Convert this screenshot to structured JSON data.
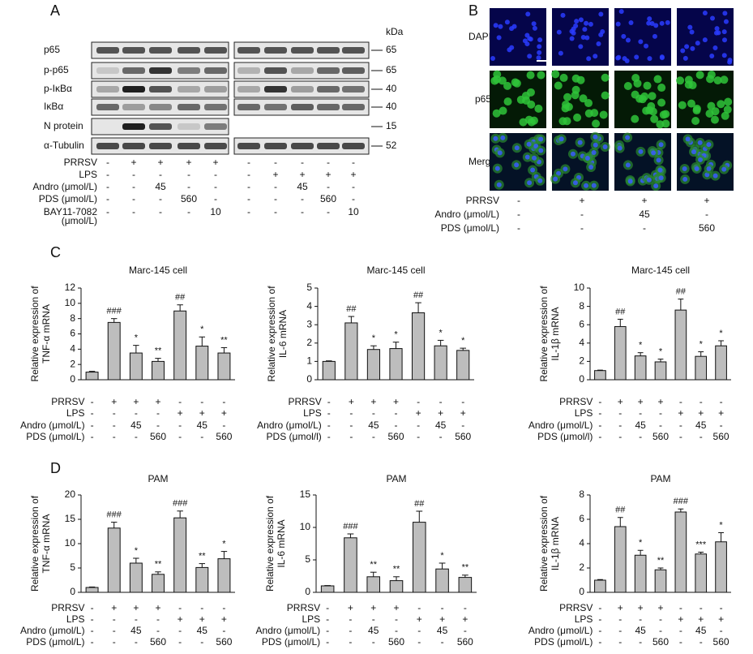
{
  "panel_a": {
    "label": "A",
    "kda": "kDa",
    "blots": [
      {
        "name": "p65",
        "size": "65"
      },
      {
        "name": "p-p65",
        "size": "65"
      },
      {
        "name": "p-IκBα",
        "size": "40"
      },
      {
        "name": "IκBα",
        "size": "40"
      },
      {
        "name": "N protein",
        "size": "15"
      },
      {
        "name": "α-Tubulin",
        "size": "52"
      }
    ],
    "treatments": [
      {
        "label": "PRRSV",
        "cells": [
          "-",
          "+",
          "+",
          "+",
          "+",
          "-",
          "-",
          "-",
          "-",
          "-"
        ]
      },
      {
        "label": "LPS",
        "cells": [
          "-",
          "-",
          "-",
          "-",
          "-",
          "-",
          "+",
          "+",
          "+",
          "+"
        ]
      },
      {
        "label": "Andro (μmol/L)",
        "cells": [
          "-",
          "-",
          "45",
          "-",
          "-",
          "-",
          "-",
          "45",
          "-",
          "-"
        ]
      },
      {
        "label": "PDS (μmol/L)",
        "cells": [
          "-",
          "-",
          "-",
          "560",
          "-",
          "-",
          "-",
          "-",
          "560",
          "-"
        ]
      },
      {
        "label": [
          "BAY11-7082",
          "(μmol/L)"
        ],
        "cells": [
          "-",
          "-",
          "-",
          "-",
          "10",
          "-",
          "-",
          "-",
          "-",
          "10"
        ]
      }
    ]
  },
  "panel_b": {
    "label": "B",
    "rows": [
      "DAPI",
      "p65",
      "Merge"
    ],
    "treatments": [
      {
        "label": "PRRSV",
        "cells": [
          "-",
          "+",
          "+",
          "+"
        ]
      },
      {
        "label": "Andro (μmol/L)",
        "cells": [
          "-",
          "-",
          "45",
          "-"
        ]
      },
      {
        "label": "PDS (μmol/L)",
        "cells": [
          "-",
          "-",
          "-",
          "560"
        ]
      }
    ]
  },
  "panel_c_label": "C",
  "panel_d_label": "D",
  "chart_data": [
    {
      "type": "bar",
      "title": "Marc-145 cell",
      "ylabel": [
        "Relative expression of",
        "TNF-α mRNA"
      ],
      "ylim": [
        0,
        12
      ],
      "yticks": [
        0,
        2,
        4,
        6,
        8,
        10,
        12
      ],
      "color": "#bdbdbd",
      "values": [
        1,
        7.5,
        3.5,
        2.4,
        9,
        4.4,
        3.5
      ],
      "errors": [
        0.1,
        0.5,
        1.0,
        0.4,
        0.8,
        1.2,
        0.7
      ],
      "annotations": [
        null,
        "###",
        "*",
        "**",
        "##",
        "*",
        "**"
      ],
      "treatments": [
        {
          "label": "PRRSV",
          "cells": [
            "-",
            "+",
            "+",
            "+",
            "-",
            "-",
            "-"
          ]
        },
        {
          "label": "LPS",
          "cells": [
            "-",
            "-",
            "-",
            "-",
            "+",
            "+",
            "+"
          ]
        },
        {
          "label": "Andro (μmol/L)",
          "cells": [
            "-",
            "-",
            "45",
            "-",
            "-",
            "45",
            "-"
          ]
        },
        {
          "label": "PDS (μmol/L)",
          "cells": [
            "-",
            "-",
            "-",
            "560",
            "-",
            "-",
            "560"
          ]
        }
      ]
    },
    {
      "type": "bar",
      "title": "Marc-145 cell",
      "ylabel": [
        "Relative expression of",
        "IL-6 mRNA"
      ],
      "ylim": [
        0,
        5
      ],
      "yticks": [
        0,
        1,
        2,
        3,
        4,
        5
      ],
      "color": "#bdbdbd",
      "values": [
        1,
        3.1,
        1.65,
        1.7,
        3.65,
        1.85,
        1.6
      ],
      "errors": [
        0.03,
        0.35,
        0.2,
        0.35,
        0.55,
        0.3,
        0.12
      ],
      "annotations": [
        null,
        "##",
        "*",
        "*",
        "##",
        "*",
        "*"
      ],
      "treatments": [
        {
          "label": "PRRSV",
          "cells": [
            "-",
            "+",
            "+",
            "+",
            "-",
            "-",
            "-"
          ]
        },
        {
          "label": "LPS",
          "cells": [
            "-",
            "-",
            "-",
            "-",
            "+",
            "+",
            "+"
          ]
        },
        {
          "label": "Andro (μmol/L)",
          "cells": [
            "-",
            "-",
            "45",
            "-",
            "-",
            "45",
            "-"
          ]
        },
        {
          "label": "PDS (μmol/l)",
          "cells": [
            "-",
            "-",
            "-",
            "560",
            "-",
            "-",
            "560"
          ]
        }
      ]
    },
    {
      "type": "bar",
      "title": "Marc-145 cell",
      "ylabel": [
        "Relative expression of",
        "IL-1β mRNA"
      ],
      "ylim": [
        0,
        10
      ],
      "yticks": [
        0,
        2,
        4,
        6,
        8,
        10
      ],
      "color": "#bdbdbd",
      "values": [
        1,
        5.8,
        2.6,
        1.95,
        7.6,
        2.55,
        3.7
      ],
      "errors": [
        0.05,
        0.8,
        0.35,
        0.3,
        1.2,
        0.5,
        0.55
      ],
      "annotations": [
        null,
        "##",
        "*",
        "*",
        "##",
        "*",
        "*"
      ],
      "treatments": [
        {
          "label": "PRRSV",
          "cells": [
            "-",
            "+",
            "+",
            "+",
            "-",
            "-",
            "-"
          ]
        },
        {
          "label": "LPS",
          "cells": [
            "-",
            "-",
            "-",
            "-",
            "+",
            "+",
            "+"
          ]
        },
        {
          "label": "Andro (μmol/L)",
          "cells": [
            "-",
            "-",
            "45",
            "-",
            "-",
            "45",
            "-"
          ]
        },
        {
          "label": "PDS (μmol/l)",
          "cells": [
            "-",
            "-",
            "-",
            "560",
            "-",
            "-",
            "560"
          ]
        }
      ]
    },
    {
      "type": "bar",
      "title": "PAM",
      "ylabel": [
        "Relative expression of",
        "TNF-α mRNA"
      ],
      "ylim": [
        0,
        20
      ],
      "yticks": [
        0,
        5,
        10,
        15,
        20
      ],
      "color": "#bdbdbd",
      "values": [
        1,
        13.2,
        6,
        3.7,
        15.3,
        5.1,
        6.9
      ],
      "errors": [
        0.1,
        1.2,
        1.0,
        0.5,
        1.4,
        0.8,
        1.5
      ],
      "annotations": [
        null,
        "###",
        "*",
        "**",
        "###",
        "**",
        "*"
      ],
      "treatments": [
        {
          "label": "PRRSV",
          "cells": [
            "-",
            "+",
            "+",
            "+",
            "-",
            "-",
            "-"
          ]
        },
        {
          "label": "LPS",
          "cells": [
            "-",
            "-",
            "-",
            "-",
            "+",
            "+",
            "+"
          ]
        },
        {
          "label": "Andro (μmol/L)",
          "cells": [
            "-",
            "-",
            "45",
            "-",
            "-",
            "45",
            "-"
          ]
        },
        {
          "label": "PDS (μmol/L)",
          "cells": [
            "-",
            "-",
            "-",
            "560",
            "-",
            "-",
            "560"
          ]
        }
      ]
    },
    {
      "type": "bar",
      "title": "PAM",
      "ylabel": [
        "Relative expression of",
        "IL-6 mRNA"
      ],
      "ylim": [
        0,
        15
      ],
      "yticks": [
        0,
        5,
        10,
        15
      ],
      "color": "#bdbdbd",
      "values": [
        1,
        8.4,
        2.4,
        1.8,
        10.8,
        3.6,
        2.3
      ],
      "errors": [
        0.05,
        0.6,
        0.7,
        0.6,
        1.7,
        0.9,
        0.35
      ],
      "annotations": [
        null,
        "###",
        "**",
        "**",
        "##",
        "*",
        "**"
      ],
      "treatments": [
        {
          "label": "PRRSV",
          "cells": [
            "-",
            "+",
            "+",
            "+",
            "-",
            "-",
            "-"
          ]
        },
        {
          "label": "LPS",
          "cells": [
            "-",
            "-",
            "-",
            "-",
            "+",
            "+",
            "+"
          ]
        },
        {
          "label": "Andro (μmol/L)",
          "cells": [
            "-",
            "-",
            "45",
            "-",
            "-",
            "45",
            "-"
          ]
        },
        {
          "label": "PDS (μmol/L)",
          "cells": [
            "-",
            "-",
            "-",
            "560",
            "-",
            "-",
            "560"
          ]
        }
      ]
    },
    {
      "type": "bar",
      "title": "PAM",
      "ylabel": [
        "Relative expression of",
        "IL-1β mRNA"
      ],
      "ylim": [
        0,
        8
      ],
      "yticks": [
        0,
        2,
        4,
        6,
        8
      ],
      "color": "#bdbdbd",
      "values": [
        1,
        5.4,
        3.05,
        1.85,
        6.6,
        3.15,
        4.15
      ],
      "errors": [
        0.05,
        0.75,
        0.4,
        0.15,
        0.25,
        0.15,
        0.75
      ],
      "annotations": [
        null,
        "##",
        "*",
        "**",
        "###",
        "***",
        "*"
      ],
      "treatments": [
        {
          "label": "PRRSV",
          "cells": [
            "-",
            "+",
            "+",
            "+",
            "-",
            "-",
            "-"
          ]
        },
        {
          "label": "LPS",
          "cells": [
            "-",
            "-",
            "-",
            "-",
            "+",
            "+",
            "+"
          ]
        },
        {
          "label": "Andro (μmol/L)",
          "cells": [
            "-",
            "-",
            "45",
            "-",
            "-",
            "45",
            "-"
          ]
        },
        {
          "label": "PDS (μmol/L)",
          "cells": [
            "-",
            "-",
            "-",
            "560",
            "-",
            "-",
            "560"
          ]
        }
      ]
    }
  ]
}
